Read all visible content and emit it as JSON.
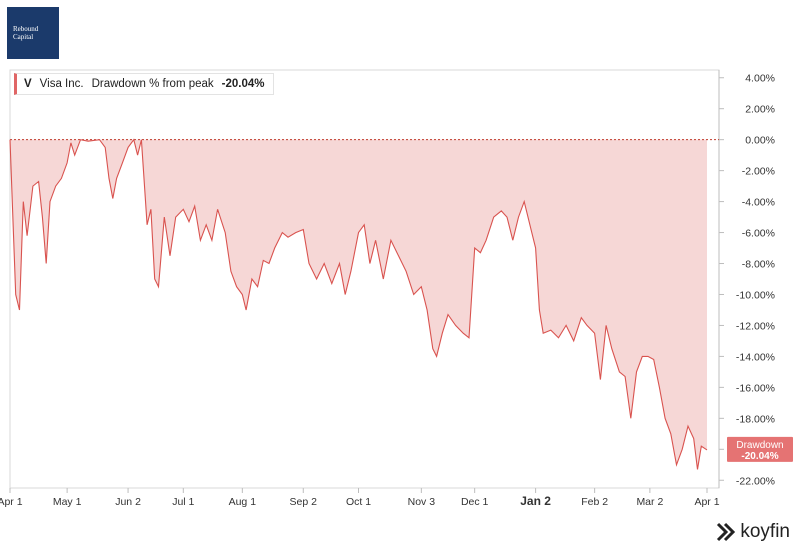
{
  "logo": {
    "line1": "Rebound",
    "line2": "Capital"
  },
  "legend": {
    "ticker": "V",
    "name": "Visa Inc.",
    "metric": "Drawdown % from peak",
    "value": "-20.04%"
  },
  "brand": {
    "name": "koyfin",
    "icon": "koyfin-logo-icon"
  },
  "colors": {
    "line": "#d9534f",
    "fill": "#f6d7d6",
    "tag": "#e57373",
    "zero_line": "#c0392b",
    "axis_text": "#333333"
  },
  "chart_data": {
    "type": "area",
    "title": "",
    "series": [
      {
        "name": "Drawdown",
        "last_value_label": "-20.04%"
      }
    ],
    "x_ticks": [
      "Apr 1",
      "May 1",
      "Jun 2",
      "Jul 1",
      "Aug 1",
      "Sep 2",
      "Oct 1",
      "Nov 3",
      "Dec 1",
      "Jan 2",
      "Feb 2",
      "Mar 2",
      "Apr 1"
    ],
    "x_tick_bold": "Jan 2",
    "y_ticks": [
      "4.00%",
      "2.00%",
      "0.00%",
      "-2.00%",
      "-4.00%",
      "-6.00%",
      "-8.00%",
      "-10.00%",
      "-12.00%",
      "-14.00%",
      "-16.00%",
      "-18.00%",
      "-20.00%",
      "-22.00%"
    ],
    "ylim": [
      -22.5,
      4.5
    ],
    "xlim": [
      "2023-04-01",
      "2024-04-01"
    ],
    "reference_line": 0,
    "points": [
      [
        "2023-04-01",
        0
      ],
      [
        "2023-04-04",
        -10
      ],
      [
        "2023-04-06",
        -11
      ],
      [
        "2023-04-08",
        -4
      ],
      [
        "2023-04-10",
        -6.2
      ],
      [
        "2023-04-13",
        -3
      ],
      [
        "2023-04-16",
        -2.7
      ],
      [
        "2023-04-18",
        -5
      ],
      [
        "2023-04-20",
        -8
      ],
      [
        "2023-04-22",
        -4
      ],
      [
        "2023-04-25",
        -3
      ],
      [
        "2023-04-28",
        -2.5
      ],
      [
        "2023-05-01",
        -1.5
      ],
      [
        "2023-05-03",
        -0.2
      ],
      [
        "2023-05-05",
        -1
      ],
      [
        "2023-05-08",
        0
      ],
      [
        "2023-05-12",
        -0.1
      ],
      [
        "2023-05-18",
        0
      ],
      [
        "2023-05-21",
        -0.5
      ],
      [
        "2023-05-23",
        -2.5
      ],
      [
        "2023-05-25",
        -3.8
      ],
      [
        "2023-05-27",
        -2.5
      ],
      [
        "2023-05-30",
        -1.5
      ],
      [
        "2023-06-02",
        -0.5
      ],
      [
        "2023-06-05",
        0
      ],
      [
        "2023-06-07",
        -1
      ],
      [
        "2023-06-09",
        0
      ],
      [
        "2023-06-12",
        -5.5
      ],
      [
        "2023-06-14",
        -4.5
      ],
      [
        "2023-06-16",
        -9
      ],
      [
        "2023-06-18",
        -9.5
      ],
      [
        "2023-06-21",
        -5
      ],
      [
        "2023-06-24",
        -7.5
      ],
      [
        "2023-06-27",
        -5
      ],
      [
        "2023-07-01",
        -4.5
      ],
      [
        "2023-07-04",
        -5.3
      ],
      [
        "2023-07-07",
        -4.3
      ],
      [
        "2023-07-10",
        -6.5
      ],
      [
        "2023-07-13",
        -5.5
      ],
      [
        "2023-07-16",
        -6.5
      ],
      [
        "2023-07-19",
        -4.5
      ],
      [
        "2023-07-23",
        -6
      ],
      [
        "2023-07-26",
        -8.5
      ],
      [
        "2023-07-29",
        -9.5
      ],
      [
        "2023-08-01",
        -10
      ],
      [
        "2023-08-03",
        -11
      ],
      [
        "2023-08-06",
        -9
      ],
      [
        "2023-08-09",
        -9.5
      ],
      [
        "2023-08-12",
        -7.8
      ],
      [
        "2023-08-15",
        -8
      ],
      [
        "2023-08-18",
        -7
      ],
      [
        "2023-08-22",
        -6
      ],
      [
        "2023-08-25",
        -6.3
      ],
      [
        "2023-08-29",
        -6
      ],
      [
        "2023-09-02",
        -5.8
      ],
      [
        "2023-09-05",
        -8
      ],
      [
        "2023-09-09",
        -9
      ],
      [
        "2023-09-13",
        -8
      ],
      [
        "2023-09-17",
        -9.3
      ],
      [
        "2023-09-21",
        -8
      ],
      [
        "2023-09-24",
        -10
      ],
      [
        "2023-09-27",
        -8.5
      ],
      [
        "2023-10-01",
        -6
      ],
      [
        "2023-10-04",
        -5.5
      ],
      [
        "2023-10-07",
        -8
      ],
      [
        "2023-10-10",
        -6.5
      ],
      [
        "2023-10-14",
        -9
      ],
      [
        "2023-10-18",
        -6.5
      ],
      [
        "2023-10-22",
        -7.5
      ],
      [
        "2023-10-26",
        -8.5
      ],
      [
        "2023-10-30",
        -10
      ],
      [
        "2023-11-03",
        -9.5
      ],
      [
        "2023-11-06",
        -11
      ],
      [
        "2023-11-09",
        -13.5
      ],
      [
        "2023-11-11",
        -14
      ],
      [
        "2023-11-14",
        -12.5
      ],
      [
        "2023-11-17",
        -11.3
      ],
      [
        "2023-11-21",
        -12
      ],
      [
        "2023-11-25",
        -12.5
      ],
      [
        "2023-11-28",
        -12.8
      ],
      [
        "2023-12-01",
        -7
      ],
      [
        "2023-12-04",
        -7.3
      ],
      [
        "2023-12-07",
        -6.5
      ],
      [
        "2023-12-11",
        -5
      ],
      [
        "2023-12-15",
        -4.6
      ],
      [
        "2023-12-18",
        -5
      ],
      [
        "2023-12-21",
        -6.5
      ],
      [
        "2023-12-24",
        -5
      ],
      [
        "2023-12-27",
        -4
      ],
      [
        "2023-12-31",
        -6
      ],
      [
        "2024-01-02",
        -7
      ],
      [
        "2024-01-04",
        -11
      ],
      [
        "2024-01-06",
        -12.5
      ],
      [
        "2024-01-10",
        -12.3
      ],
      [
        "2024-01-14",
        -12.8
      ],
      [
        "2024-01-18",
        -12
      ],
      [
        "2024-01-22",
        -13
      ],
      [
        "2024-01-26",
        -11.5
      ],
      [
        "2024-01-29",
        -12
      ],
      [
        "2024-02-02",
        -12.5
      ],
      [
        "2024-02-05",
        -15.5
      ],
      [
        "2024-02-08",
        -12
      ],
      [
        "2024-02-11",
        -13.5
      ],
      [
        "2024-02-15",
        -15
      ],
      [
        "2024-02-18",
        -15.3
      ],
      [
        "2024-02-21",
        -18
      ],
      [
        "2024-02-24",
        -15
      ],
      [
        "2024-02-27",
        -14
      ],
      [
        "2024-03-01",
        -14
      ],
      [
        "2024-03-04",
        -14.2
      ],
      [
        "2024-03-07",
        -16
      ],
      [
        "2024-03-10",
        -18
      ],
      [
        "2024-03-13",
        -19
      ],
      [
        "2024-03-16",
        -21
      ],
      [
        "2024-03-19",
        -20
      ],
      [
        "2024-03-22",
        -18.5
      ],
      [
        "2024-03-25",
        -19.3
      ],
      [
        "2024-03-27",
        -21.3
      ],
      [
        "2024-03-29",
        -19.8
      ],
      [
        "2024-04-01",
        -20.04
      ]
    ]
  }
}
